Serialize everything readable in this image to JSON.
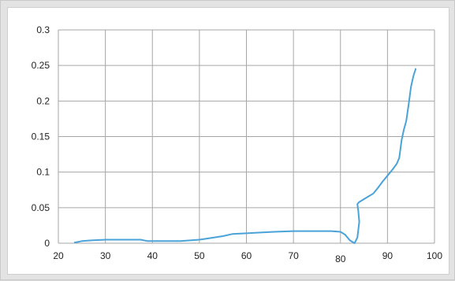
{
  "chart_data": {
    "type": "line",
    "title": "",
    "xlabel": "",
    "ylabel": "",
    "xlim": [
      20,
      100
    ],
    "ylim": [
      0,
      0.3
    ],
    "x_ticks": [
      20,
      30,
      40,
      50,
      60,
      70,
      80,
      90,
      100
    ],
    "x_tick_labels": [
      "20",
      "30",
      "40",
      "50",
      "60",
      "70",
      "80",
      "90",
      "100"
    ],
    "y_ticks": [
      0,
      0.05,
      0.1,
      0.15,
      0.2,
      0.25,
      0.3
    ],
    "y_tick_labels": [
      "0",
      "0.05",
      "0.1",
      "0.15",
      "0.2",
      "0.25",
      "0.3"
    ],
    "grid": true,
    "line_color": "#4aa3d8",
    "grid_color": "#a6a6a6",
    "series": [
      {
        "x": [
          23.5,
          25,
          27,
          30,
          33,
          35,
          37.5,
          39,
          40,
          42,
          44,
          46,
          48,
          50,
          52,
          55,
          57,
          60,
          63,
          66,
          70,
          73,
          76,
          78,
          80,
          81,
          82,
          83,
          83.6,
          84,
          83.8,
          83.6,
          84,
          85,
          86,
          87,
          88,
          89,
          90,
          91,
          92,
          92.5,
          93,
          93.5,
          94,
          94.5,
          95,
          95.5,
          96
        ],
        "y": [
          0.001,
          0.003,
          0.004,
          0.005,
          0.005,
          0.005,
          0.005,
          0.003,
          0.003,
          0.003,
          0.003,
          0.003,
          0.004,
          0.005,
          0.007,
          0.01,
          0.013,
          0.014,
          0.015,
          0.016,
          0.017,
          0.017,
          0.017,
          0.017,
          0.016,
          0.012,
          0.004,
          0.0,
          0.008,
          0.03,
          0.045,
          0.055,
          0.058,
          0.062,
          0.066,
          0.07,
          0.078,
          0.087,
          0.095,
          0.103,
          0.112,
          0.12,
          0.145,
          0.16,
          0.172,
          0.195,
          0.22,
          0.235,
          0.245
        ]
      }
    ]
  }
}
